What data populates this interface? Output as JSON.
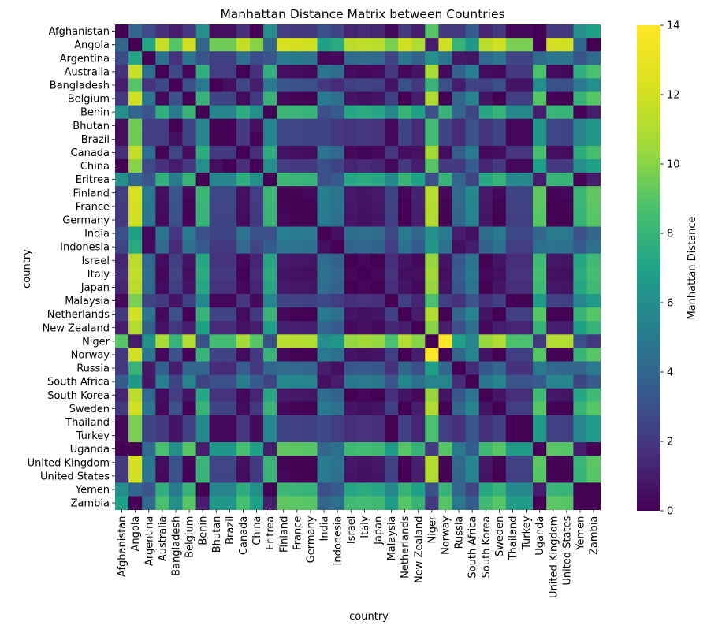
{
  "chart_data": {
    "type": "heatmap",
    "title": "Manhattan Distance Matrix between Countries",
    "xlabel": "country",
    "ylabel": "country",
    "colorbar": {
      "label": "Manhattan Distance",
      "ticks": [
        "0",
        "2",
        "4",
        "6",
        "8",
        "10",
        "12",
        "14"
      ],
      "range": [
        0,
        14
      ],
      "colormap": "viridis"
    },
    "categories": [
      "Afghanistan",
      "Angola",
      "Argentina",
      "Australia",
      "Bangladesh",
      "Belgium",
      "Benin",
      "Bhutan",
      "Brazil",
      "Canada",
      "China",
      "Eritrea",
      "Finland",
      "France",
      "Germany",
      "India",
      "Indonesia",
      "Israel",
      "Italy",
      "Japan",
      "Malaysia",
      "Netherlands",
      "New Zealand",
      "Niger",
      "Norway",
      "Russia",
      "South Africa",
      "South Korea",
      "Sweden",
      "Thailand",
      "Turkey",
      "Uganda",
      "United Kingdom",
      "United States",
      "Yemen",
      "Zambia"
    ],
    "profile": [
      2.5,
      12.5,
      5.3,
      0.8,
      3.5,
      0.5,
      8.5,
      3.0,
      3.0,
      0.9,
      2.5,
      8.5,
      0.3,
      0.4,
      0.5,
      5.5,
      5.0,
      1.2,
      1.0,
      1.2,
      2.8,
      0.5,
      1.5,
      11.5,
      0.5,
      4.5,
      6.0,
      1.2,
      0.5,
      2.8,
      2.8,
      9.5,
      0.4,
      0.5,
      8.5,
      9.5
    ],
    "cap": 14,
    "extra_distance": [
      [
        "Angola",
        "Zambia",
        -8
      ],
      [
        "Yemen",
        "Zambia",
        -6
      ],
      [
        "Afghanistan",
        "Uganda",
        -9
      ],
      [
        "Afghanistan",
        "Angola",
        -6
      ],
      [
        "Angola",
        "Uganda",
        -8
      ],
      [
        "Niger",
        "Norway",
        3
      ],
      [
        "Bhutan",
        "Bangladesh",
        -2
      ],
      [
        "China",
        "Brazil",
        -1
      ]
    ]
  }
}
